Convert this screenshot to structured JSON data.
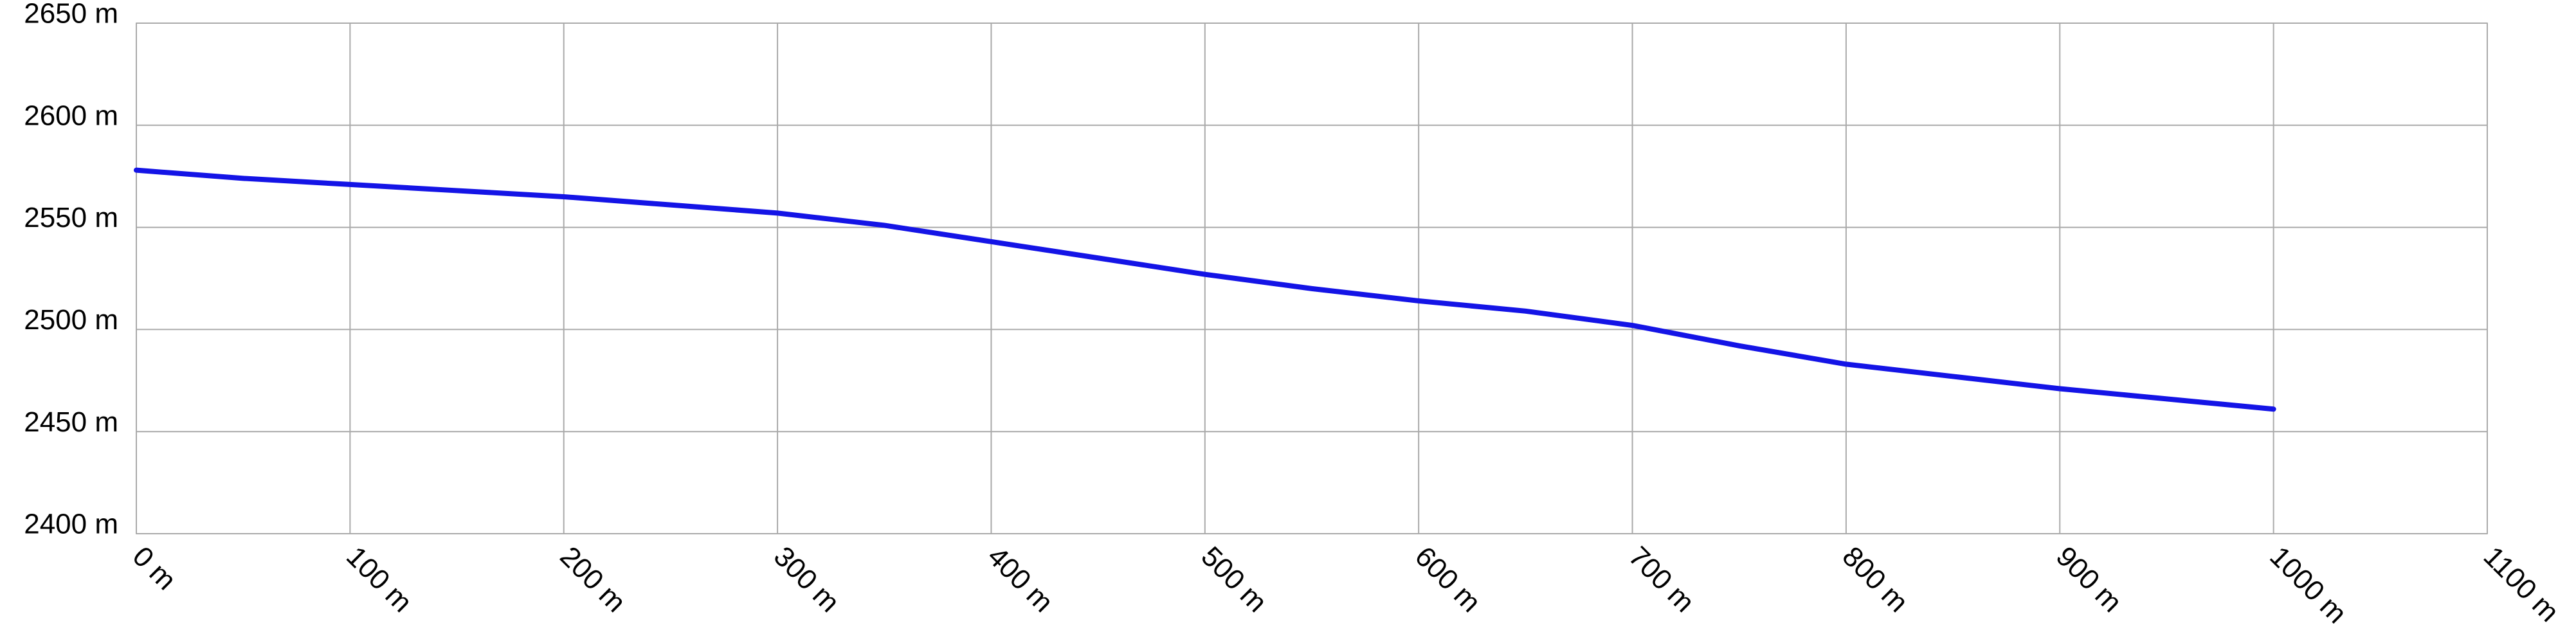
{
  "chart_data": {
    "type": "line",
    "x": [
      0,
      50,
      100,
      150,
      200,
      250,
      300,
      350,
      400,
      450,
      500,
      550,
      600,
      650,
      700,
      750,
      800,
      850,
      900,
      950,
      1000
    ],
    "series": [
      {
        "color": "#1414e6",
        "values": [
          2578,
          2574,
          2571,
          2568,
          2565,
          2561,
          2557,
          2551,
          2543,
          2535,
          2527,
          2520,
          2514,
          2509,
          2502,
          2492,
          2483,
          2477,
          2471,
          2466,
          2461
        ]
      }
    ],
    "xlim": [
      0,
      1100
    ],
    "xticks": [
      {
        "value": 0,
        "label": "0 m"
      },
      {
        "value": 100,
        "label": "100 m"
      },
      {
        "value": 200,
        "label": "200 m"
      },
      {
        "value": 300,
        "label": "300 m"
      },
      {
        "value": 400,
        "label": "400 m"
      },
      {
        "value": 500,
        "label": "500 m"
      },
      {
        "value": 600,
        "label": "600 m"
      },
      {
        "value": 700,
        "label": "700 m"
      },
      {
        "value": 800,
        "label": "800 m"
      },
      {
        "value": 900,
        "label": "900 m"
      },
      {
        "value": 1000,
        "label": "1000 m"
      },
      {
        "value": 1100,
        "label": "1100 m"
      }
    ],
    "ylim": [
      2400,
      2650
    ],
    "yticks": [
      {
        "value": 2400,
        "label": "2400 m"
      },
      {
        "value": 2450,
        "label": "2450 m"
      },
      {
        "value": 2500,
        "label": "2500 m"
      },
      {
        "value": 2550,
        "label": "2550 m"
      },
      {
        "value": 2600,
        "label": "2600 m"
      },
      {
        "value": 2650,
        "label": "2650 m"
      }
    ],
    "grid": true
  }
}
